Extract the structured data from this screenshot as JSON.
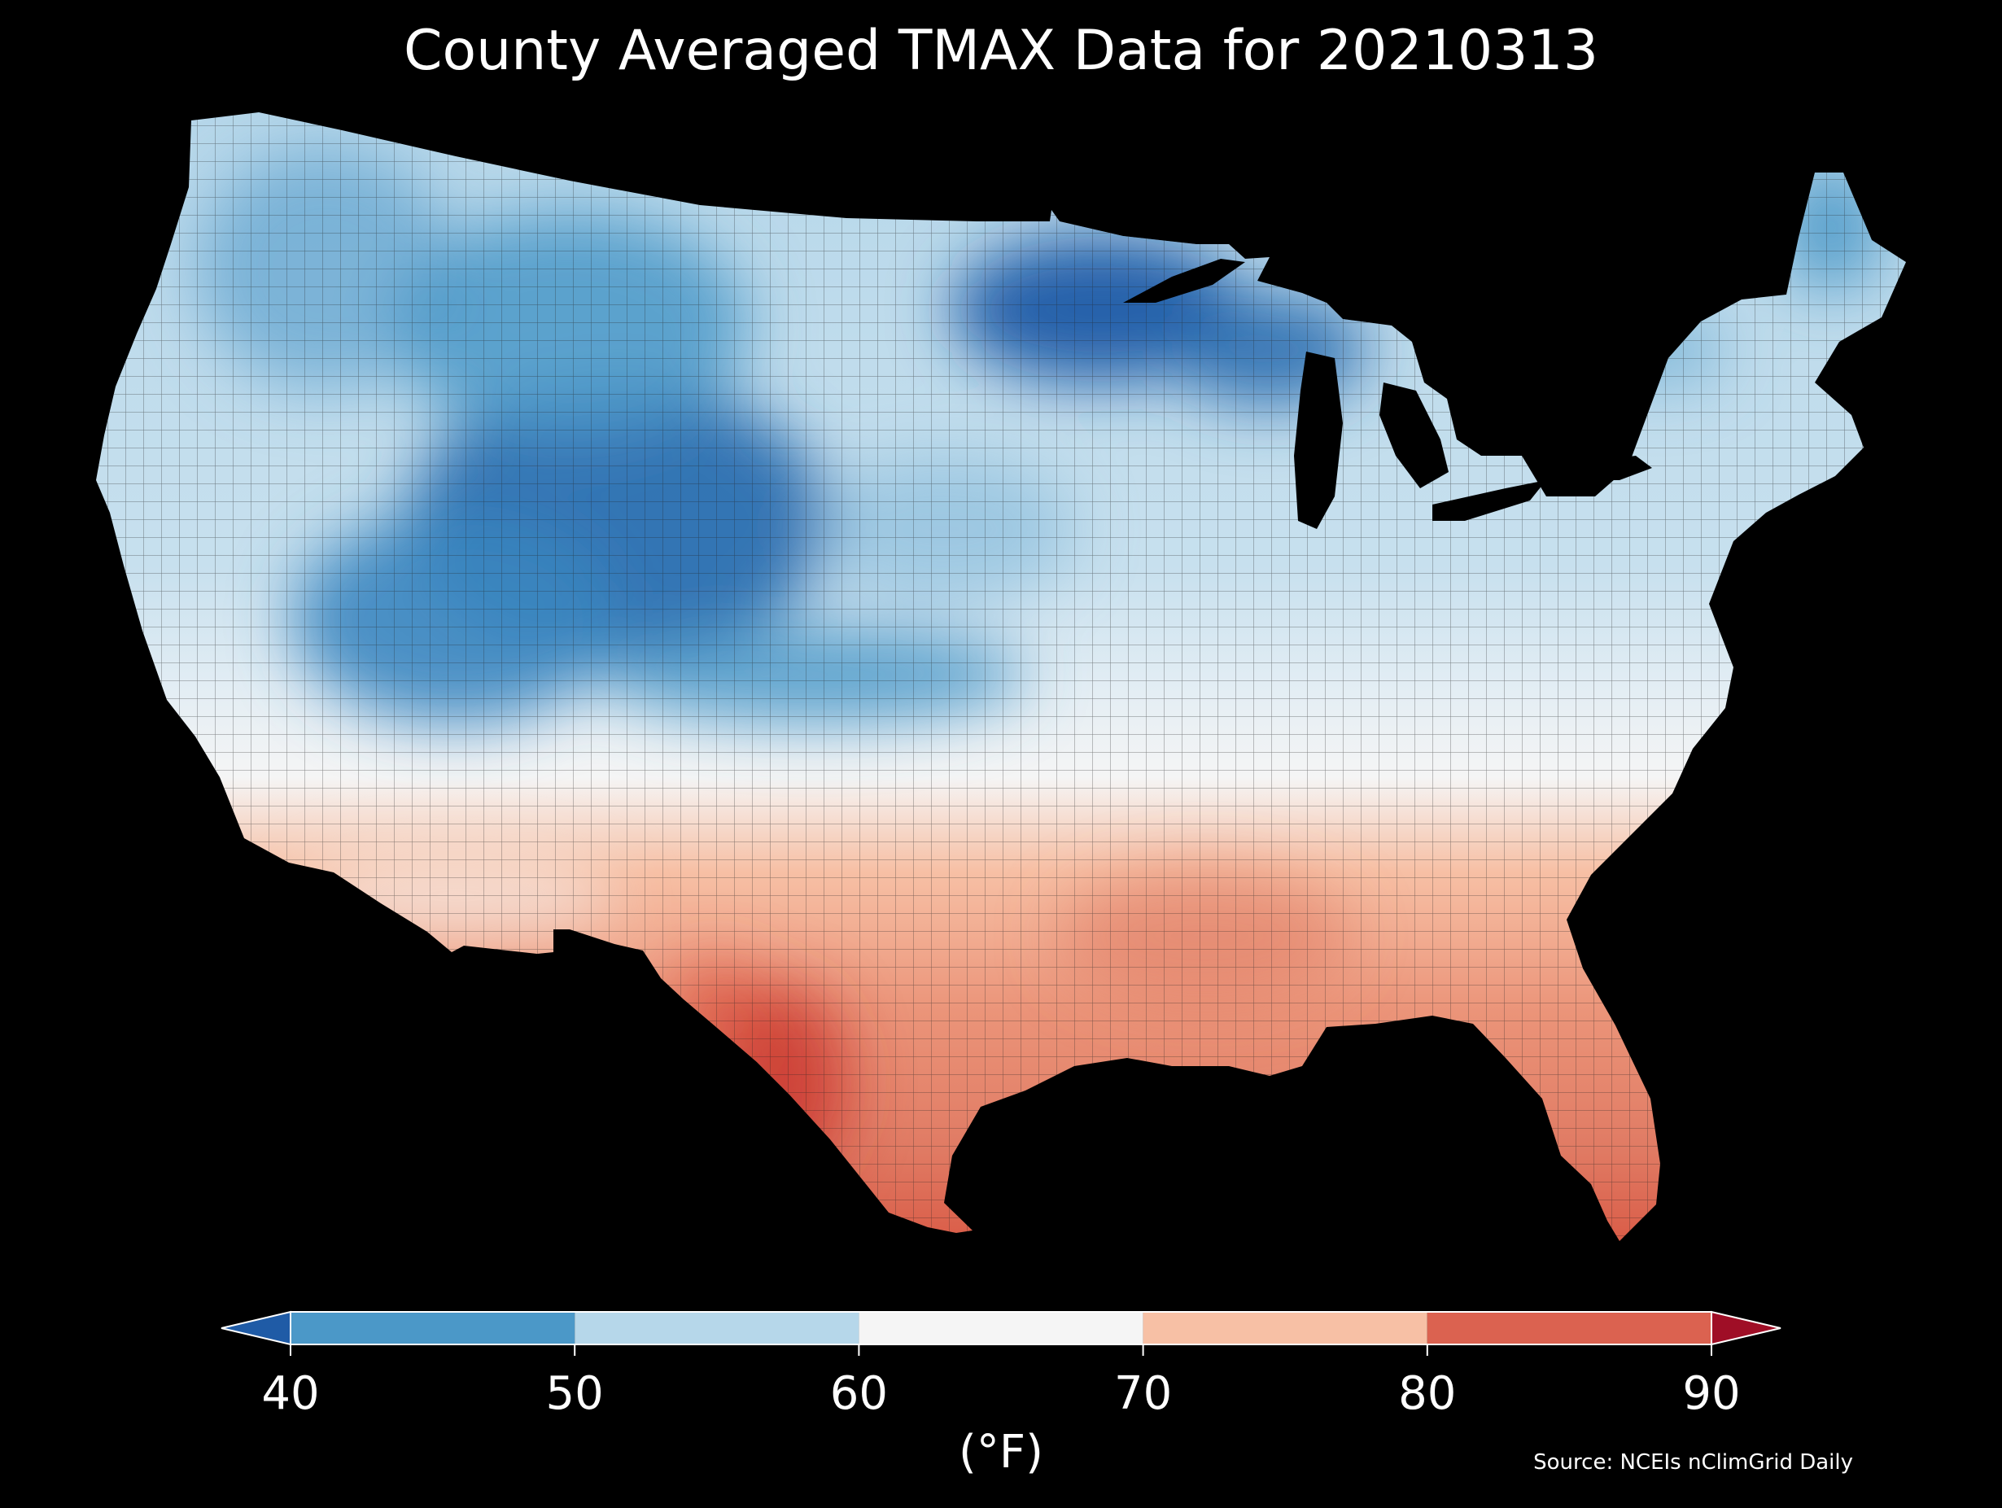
{
  "title": "County Averaged TMAX Data for 20210313",
  "source": "Source: NCEIs nClimGrid Daily",
  "colorbar": {
    "unit_label": "(°F)",
    "ticks": [
      "40",
      "50",
      "60",
      "70",
      "80",
      "90"
    ],
    "bins": [
      {
        "from": 40,
        "to": 50,
        "color": "#4b98c8"
      },
      {
        "from": 50,
        "to": 60,
        "color": "#b6d7ea"
      },
      {
        "from": 60,
        "to": 70,
        "color": "#f5f5f5"
      },
      {
        "from": 70,
        "to": 80,
        "color": "#f7c0a5"
      },
      {
        "from": 80,
        "to": 90,
        "color": "#db6250"
      }
    ],
    "under_color": "#1f5ba6",
    "over_color": "#9f0e26"
  },
  "map": {
    "region": "Contiguous United States",
    "variable": "TMAX",
    "date": "20210313",
    "background_color": "#000000",
    "county_border_color": "#222222"
  }
}
